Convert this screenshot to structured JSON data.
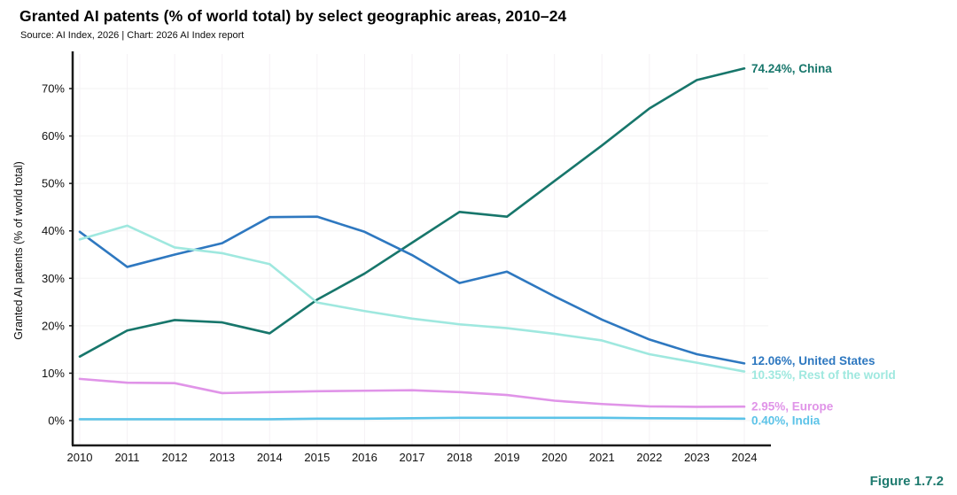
{
  "header": {
    "title": "Granted AI patents (% of world total) by select geographic areas, 2010–24",
    "source": "Source: AI Index, 2026 | Chart: 2026 AI Index report"
  },
  "footer": {
    "figure_label": "Figure 1.7.2"
  },
  "colors": {
    "axis": "#1a1a1a",
    "grid_horizontal": "#f3f3f3",
    "grid_vertical": "#f5f1f5",
    "figure_label": "#1d7a6e"
  },
  "chart_data": {
    "type": "line",
    "title": "Granted AI patents (% of world total) by select geographic areas, 2010–24",
    "xlabel": "",
    "ylabel": "Granted AI patents (% of world total)",
    "x": [
      2010,
      2011,
      2012,
      2013,
      2014,
      2015,
      2016,
      2017,
      2018,
      2019,
      2020,
      2021,
      2022,
      2023,
      2024
    ],
    "x_tick_labels": [
      "2010",
      "2011",
      "2012",
      "2013",
      "2014",
      "2015",
      "2016",
      "2017",
      "2018",
      "2019",
      "2020",
      "2021",
      "2022",
      "2023",
      "2024"
    ],
    "y_tick_labels": [
      "0%",
      "10%",
      "20%",
      "30%",
      "40%",
      "50%",
      "60%",
      "70%"
    ],
    "ylim": [
      0,
      78
    ],
    "grid": true,
    "legend_position": "right-end-of-line labels",
    "series": [
      {
        "name": "China",
        "color": "#17766b",
        "end_label": "74.24%, China",
        "values": [
          13.5,
          19.0,
          21.2,
          20.7,
          18.4,
          25.5,
          31.0,
          37.5,
          44.0,
          43.0,
          50.5,
          58.0,
          65.8,
          71.8,
          74.24
        ]
      },
      {
        "name": "United States",
        "color": "#2e78c0",
        "end_label": "12.06%, United States",
        "values": [
          39.8,
          32.4,
          35.0,
          37.4,
          42.9,
          43.0,
          39.8,
          34.9,
          29.0,
          31.4,
          26.2,
          21.3,
          17.1,
          14.0,
          12.06
        ]
      },
      {
        "name": "Rest of the world",
        "color": "#9fe8df",
        "end_label": "10.35%, Rest of the world",
        "values": [
          38.2,
          41.1,
          36.5,
          35.3,
          33.0,
          24.9,
          23.1,
          21.5,
          20.3,
          19.5,
          18.3,
          16.9,
          14.0,
          12.2,
          10.35
        ]
      },
      {
        "name": "Europe",
        "color": "#e094e8",
        "end_label": "2.95%, Europe",
        "values": [
          8.8,
          8.0,
          7.9,
          5.8,
          6.0,
          6.2,
          6.3,
          6.4,
          6.0,
          5.4,
          4.2,
          3.5,
          3.0,
          2.9,
          2.95
        ]
      },
      {
        "name": "India",
        "color": "#5cc3e8",
        "end_label": "0.40%, India",
        "values": [
          0.3,
          0.3,
          0.3,
          0.3,
          0.3,
          0.4,
          0.4,
          0.5,
          0.6,
          0.6,
          0.6,
          0.6,
          0.5,
          0.45,
          0.4
        ]
      }
    ]
  }
}
